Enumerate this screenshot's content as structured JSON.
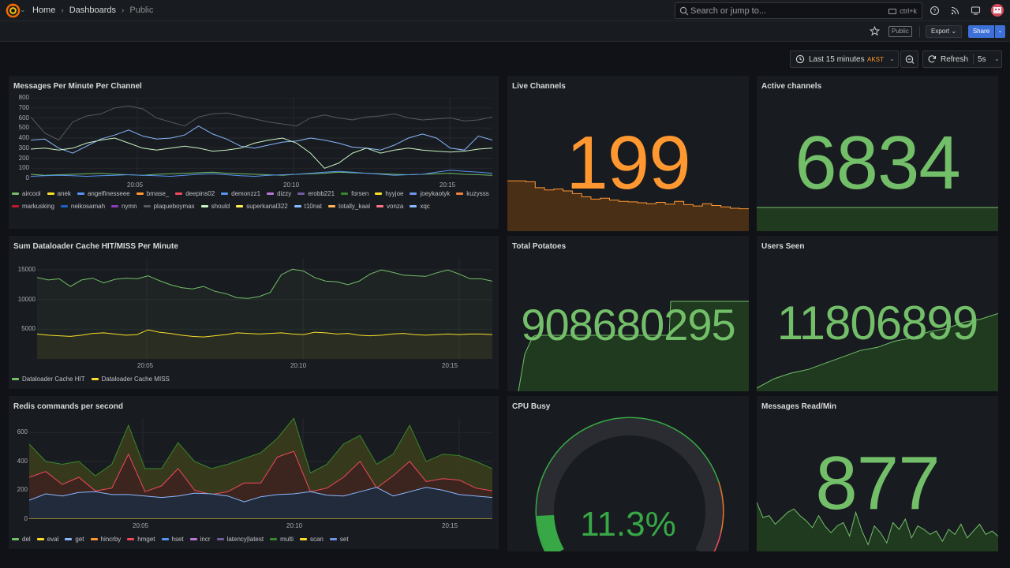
{
  "nav": {
    "breadcrumb": [
      "Home",
      "Dashboards",
      "Public"
    ],
    "search_placeholder": "Search or jump to...",
    "search_shortcut": "ctrl+k"
  },
  "toolbar": {
    "public_label": "Public",
    "export_label": "Export",
    "share_label": "Share",
    "time_range": "Last 15 minutes",
    "timezone": "AKST",
    "refresh_label": "Refresh",
    "refresh_interval": "5s"
  },
  "colors": {
    "accent_green": "#73bf69",
    "accent_orange": "#ff9830",
    "accent_blue": "#3d71d9",
    "gauge_red": "#f2495c"
  },
  "panels": {
    "messages": {
      "title": "Messages Per Minute Per Channel",
      "y_ticks": [
        "800",
        "700",
        "600",
        "500",
        "400",
        "300",
        "200",
        "100",
        "0"
      ],
      "x_ticks": [
        "20:05",
        "20:10",
        "20:15"
      ],
      "legend": [
        {
          "name": "aircool",
          "color": "#73bf69"
        },
        {
          "name": "anek",
          "color": "#fade2a"
        },
        {
          "name": "angelfinesseee",
          "color": "#5794f2"
        },
        {
          "name": "bmase_",
          "color": "#ff9830"
        },
        {
          "name": "deepins02",
          "color": "#f2495c"
        },
        {
          "name": "demonzz1",
          "color": "#5794f2"
        },
        {
          "name": "dizzy",
          "color": "#b877d9"
        },
        {
          "name": "erobb221",
          "color": "#705da0"
        },
        {
          "name": "forsen",
          "color": "#37872d"
        },
        {
          "name": "hyyjoe",
          "color": "#fade2a"
        },
        {
          "name": "joeykaotyk",
          "color": "#6f94e8"
        },
        {
          "name": "kuzysss",
          "color": "#ef843c"
        },
        {
          "name": "markusking",
          "color": "#c4162a"
        },
        {
          "name": "neikosamah",
          "color": "#1f60c4"
        },
        {
          "name": "nymn",
          "color": "#8f3bb8"
        },
        {
          "name": "plaqueboymax",
          "color": "#56595f"
        },
        {
          "name": "should",
          "color": "#c8f2c2"
        },
        {
          "name": "superkanal322",
          "color": "#ffee52"
        },
        {
          "name": "t10nat",
          "color": "#8ab8ff"
        },
        {
          "name": "totally_kaal",
          "color": "#ffb357"
        },
        {
          "name": "vonza",
          "color": "#ff7383"
        },
        {
          "name": "xqc",
          "color": "#8ab8ff"
        }
      ]
    },
    "live_channels": {
      "title": "Live Channels",
      "value": "199",
      "color": "#ff9830"
    },
    "active_channels": {
      "title": "Active channels",
      "value": "6834",
      "color": "#73bf69"
    },
    "dataloader": {
      "title": "Sum Dataloader Cache HIT/MISS Per Minute",
      "y_ticks": [
        "15000",
        "10000",
        "5000"
      ],
      "x_ticks": [
        "20:05",
        "20:10",
        "20:15"
      ],
      "legend": [
        {
          "name": "Dataloader Cache HIT",
          "color": "#73bf69"
        },
        {
          "name": "Dataloader Cache MISS",
          "color": "#fade2a"
        }
      ]
    },
    "total_potatoes": {
      "title": "Total Potatoes",
      "value": "908680295",
      "color": "#73bf69"
    },
    "users_seen": {
      "title": "Users Seen",
      "value": "11806899",
      "color": "#73bf69"
    },
    "redis": {
      "title": "Redis commands per second",
      "y_ticks": [
        "600",
        "400",
        "200",
        "0"
      ],
      "x_ticks": [
        "20:05",
        "20:10",
        "20:15"
      ],
      "legend": [
        {
          "name": "del",
          "color": "#73bf69"
        },
        {
          "name": "eval",
          "color": "#fade2a"
        },
        {
          "name": "get",
          "color": "#8ab8ff"
        },
        {
          "name": "hincrby",
          "color": "#ff9830"
        },
        {
          "name": "hmget",
          "color": "#f2495c"
        },
        {
          "name": "hset",
          "color": "#5794f2"
        },
        {
          "name": "incr",
          "color": "#b877d9"
        },
        {
          "name": "latency|latest",
          "color": "#705da0"
        },
        {
          "name": "multi",
          "color": "#37872d"
        },
        {
          "name": "scan",
          "color": "#fade2a"
        },
        {
          "name": "set",
          "color": "#6f94e8"
        }
      ]
    },
    "cpu_busy": {
      "title": "CPU Busy",
      "value": "11.3%",
      "level": 0.113
    },
    "messages_read": {
      "title": "Messages Read/Min",
      "value": "877",
      "color": "#73bf69"
    }
  },
  "chart_data": [
    {
      "type": "line",
      "title": "Messages Per Minute Per Channel",
      "x_ticks": [
        "20:05",
        "20:10",
        "20:15"
      ],
      "ylim": [
        0,
        800
      ],
      "series": [
        {
          "name": "plaqueboymax",
          "values": [
            610,
            450,
            380,
            560,
            620,
            640,
            700,
            720,
            690,
            600,
            560,
            520,
            610,
            640,
            650,
            620,
            590,
            560,
            540,
            520,
            600,
            630,
            600,
            580,
            610,
            620,
            640,
            600,
            580,
            590,
            600,
            570,
            580,
            610
          ]
        },
        {
          "name": "xqc",
          "values": [
            380,
            390,
            300,
            250,
            320,
            390,
            430,
            480,
            420,
            390,
            400,
            430,
            520,
            440,
            390,
            320,
            300,
            330,
            360,
            370,
            400,
            380,
            350,
            310,
            300,
            280,
            330,
            400,
            440,
            400,
            300,
            280,
            420,
            380
          ]
        },
        {
          "name": "should",
          "values": [
            290,
            300,
            280,
            300,
            350,
            380,
            400,
            350,
            300,
            280,
            300,
            320,
            300,
            270,
            280,
            300,
            350,
            380,
            400,
            350,
            250,
            100,
            150,
            250,
            300,
            250,
            280,
            300,
            280,
            270,
            260,
            270,
            290,
            300
          ]
        },
        {
          "name": "aircool",
          "values": [
            40,
            30,
            35,
            40,
            45,
            50,
            40,
            35,
            30,
            40,
            45,
            50,
            55,
            60,
            50,
            45,
            40,
            35,
            30,
            40,
            45,
            50,
            60,
            55,
            50,
            45,
            40,
            35,
            40,
            45,
            50,
            40,
            35,
            30
          ]
        },
        {
          "name": "angelfinesseee",
          "values": [
            20,
            25,
            30,
            25,
            20,
            25,
            30,
            35,
            30,
            25,
            20,
            30,
            40,
            45,
            35,
            25,
            20,
            30,
            35,
            40,
            50,
            60,
            70,
            60,
            50,
            40,
            30,
            35,
            40,
            60,
            80,
            70,
            60,
            50
          ]
        }
      ]
    },
    {
      "type": "line",
      "title": "Sum Dataloader Cache HIT/MISS Per Minute",
      "x_ticks": [
        "20:05",
        "20:10",
        "20:15"
      ],
      "ylim": [
        0,
        17000
      ],
      "series": [
        {
          "name": "Dataloader Cache HIT",
          "values": [
            13700,
            13300,
            13500,
            12200,
            13300,
            13600,
            12800,
            13400,
            13600,
            13500,
            14000,
            13200,
            12500,
            12000,
            11800,
            12200,
            11400,
            11000,
            10300,
            10200,
            10500,
            11200,
            14200,
            15100,
            14800,
            13700,
            13100,
            13000,
            12500,
            13100,
            14300,
            15000,
            14600,
            14100,
            14000,
            13900,
            14500,
            15000,
            14300,
            13500,
            13500,
            13100
          ]
        },
        {
          "name": "Dataloader Cache MISS",
          "values": [
            4200,
            4000,
            3900,
            3800,
            4000,
            4300,
            4400,
            4200,
            4000,
            4100,
            4900,
            4500,
            4300,
            4000,
            3800,
            3700,
            3900,
            4100,
            4400,
            4300,
            4200,
            4300,
            4400,
            4200,
            4100,
            4500,
            4400,
            4200,
            4300,
            4000,
            3900,
            4000,
            4200,
            4300,
            4100,
            4000,
            4100,
            4200,
            4100,
            4200,
            4200,
            4100
          ]
        }
      ]
    },
    {
      "type": "area",
      "title": "Redis commands per second",
      "x_ticks": [
        "20:05",
        "20:10",
        "20:15"
      ],
      "ylim": [
        0,
        700
      ],
      "series": [
        {
          "name": "eval",
          "values": [
            0,
            0,
            0,
            0,
            0,
            0,
            0,
            0,
            0,
            0,
            0,
            0,
            0,
            0,
            0,
            0,
            0,
            0,
            0,
            0,
            0,
            0,
            0,
            0,
            0,
            0,
            0,
            0,
            0
          ]
        },
        {
          "name": "get",
          "values": [
            130,
            175,
            160,
            185,
            190,
            170,
            170,
            160,
            150,
            160,
            180,
            175,
            160,
            120,
            155,
            170,
            175,
            190,
            165,
            160,
            190,
            220,
            160,
            190,
            220,
            200,
            170,
            160,
            150
          ]
        },
        {
          "name": "hmget",
          "values": [
            290,
            330,
            240,
            290,
            195,
            215,
            450,
            190,
            230,
            350,
            200,
            170,
            190,
            250,
            250,
            430,
            470,
            190,
            215,
            290,
            400,
            215,
            300,
            400,
            260,
            280,
            270,
            215,
            195
          ]
        },
        {
          "name": "multi",
          "values": [
            520,
            400,
            380,
            400,
            300,
            380,
            650,
            350,
            350,
            530,
            400,
            350,
            380,
            420,
            460,
            560,
            700,
            320,
            380,
            520,
            580,
            380,
            450,
            650,
            400,
            450,
            440,
            400,
            350
          ]
        }
      ]
    },
    {
      "type": "area",
      "title": "Live Channels",
      "values": [
        260,
        260,
        258,
        245,
        240,
        242,
        238,
        232,
        225,
        220,
        222,
        218,
        215,
        214,
        212,
        210,
        213,
        209,
        215,
        208,
        205,
        210,
        206,
        203,
        200,
        199,
        199
      ]
    },
    {
      "type": "area",
      "title": "Users Seen",
      "values": [
        11795000,
        11796500,
        11797400,
        11798000,
        11799000,
        11800000,
        11801000,
        11801500,
        11802500,
        11803000,
        11804000,
        11804500,
        11805500,
        11806000,
        11806899
      ]
    },
    {
      "type": "area",
      "title": "Messages Read/Min",
      "values": [
        880,
        700,
        720,
        620,
        690,
        760,
        800,
        720,
        660,
        580,
        720,
        600,
        520,
        600,
        640,
        480,
        760,
        540,
        380,
        600,
        520,
        400,
        640,
        560,
        680,
        460,
        600,
        560,
        500,
        540,
        420,
        560,
        500,
        620,
        460,
        540,
        620,
        500,
        540,
        480
      ]
    }
  ]
}
